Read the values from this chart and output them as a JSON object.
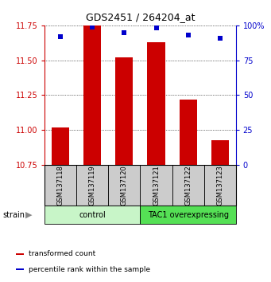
{
  "title": "GDS2451 / 264204_at",
  "samples": [
    "GSM137118",
    "GSM137119",
    "GSM137120",
    "GSM137121",
    "GSM137122",
    "GSM137123"
  ],
  "red_values": [
    11.02,
    11.75,
    11.52,
    11.63,
    11.22,
    10.93
  ],
  "blue_values": [
    92,
    99,
    95,
    98,
    93,
    91
  ],
  "ylim_left": [
    10.75,
    11.75
  ],
  "ylim_right": [
    0,
    100
  ],
  "yticks_left": [
    10.75,
    11.0,
    11.25,
    11.5,
    11.75
  ],
  "yticks_right": [
    0,
    25,
    50,
    75,
    100
  ],
  "groups": [
    {
      "label": "control",
      "indices": [
        0,
        1,
        2
      ],
      "color": "#c8f5c8"
    },
    {
      "label": "TAC1 overexpressing",
      "indices": [
        3,
        4,
        5
      ],
      "color": "#55e055"
    }
  ],
  "bar_color": "#cc0000",
  "dot_color": "#0000cc",
  "bar_width": 0.55,
  "group_label": "strain",
  "legend_items": [
    {
      "color": "#cc0000",
      "label": "transformed count"
    },
    {
      "color": "#0000cc",
      "label": "percentile rank within the sample"
    }
  ],
  "background_color": "#ffffff",
  "tick_color_left": "#cc0000",
  "tick_color_right": "#0000cc",
  "xlabel_area_bg": "#cccccc"
}
